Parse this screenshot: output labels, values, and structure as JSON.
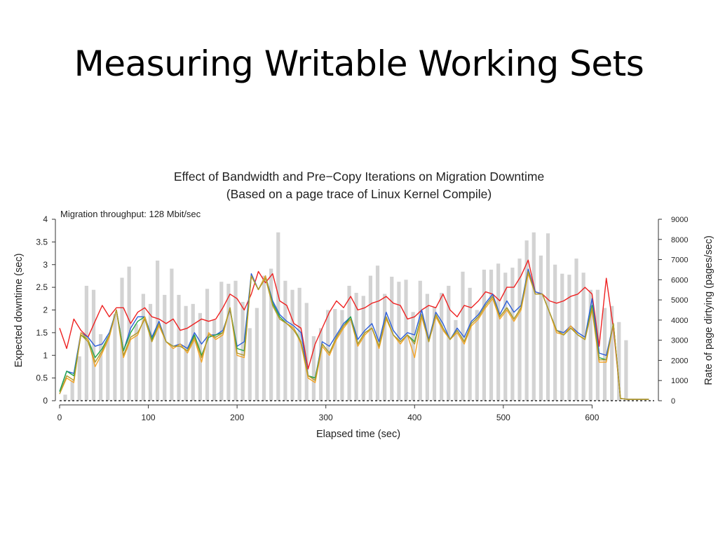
{
  "slide": {
    "title": "Measuring Writable Working Sets"
  },
  "chart_data": {
    "type": "line",
    "title": "Effect of Bandwidth and Pre−Copy Iterations on Migration Downtime",
    "subtitle": "(Based on a page trace of Linux Kernel Compile)",
    "annotation": "Migration throughput: 128 Mbit/sec",
    "xlabel": "Elapsed time (sec)",
    "ylabel": "Expected downtime (sec)",
    "y2label": "Rate of page dirtying (pages/sec)",
    "xlim": [
      0,
      670
    ],
    "ylim": [
      0,
      4
    ],
    "y2lim": [
      0,
      9000
    ],
    "x_ticks": [
      "0",
      "100",
      "200",
      "300",
      "400",
      "500",
      "600"
    ],
    "y_ticks": [
      "0",
      "0.5",
      "1",
      "1.5",
      "2",
      "2.5",
      "3",
      "3.5",
      "4"
    ],
    "y2_ticks": [
      "0",
      "1000",
      "2000",
      "3000",
      "4000",
      "5000",
      "6000",
      "7000",
      "8000",
      "9000"
    ],
    "grid": false,
    "colors": {
      "red": "#ee2222",
      "blue": "#2e5fd9",
      "green": "#22a64a",
      "orange": "#f4a428",
      "olive": "#b29a2c",
      "bars": "#d3d3d3"
    },
    "bars": {
      "x": [
        0,
        8,
        16,
        24,
        32,
        40,
        48,
        56,
        64,
        72,
        80,
        88,
        96,
        104,
        112,
        120,
        128,
        136,
        144,
        152,
        160,
        168,
        176,
        184,
        192,
        200,
        208,
        216,
        224,
        232,
        240,
        248,
        256,
        264,
        272,
        280,
        288,
        296,
        304,
        312,
        320,
        328,
        336,
        344,
        352,
        360,
        368,
        376,
        384,
        392,
        400,
        408,
        416,
        424,
        432,
        440,
        448,
        456,
        464,
        472,
        480,
        488,
        496,
        504,
        512,
        520,
        528,
        536,
        544,
        552,
        560,
        568,
        576,
        584,
        592,
        600,
        608,
        616,
        624,
        632,
        640,
        648,
        656,
        664
      ],
      "values": [
        300,
        1000,
        2200,
        5700,
        5500,
        3300,
        3200,
        4300,
        6100,
        6650,
        3800,
        5300,
        4800,
        6950,
        5250,
        6550,
        5250,
        4700,
        4800,
        4350,
        5550,
        4000,
        5900,
        5800,
        5950,
        4900,
        3600,
        4600,
        6200,
        6550,
        8350,
        5950,
        5500,
        5600,
        4850,
        3200,
        3600,
        4500,
        4550,
        4500,
        5700,
        5350,
        5200,
        6200,
        6700,
        5300,
        6150,
        5900,
        6000,
        4400,
        5950,
        5300,
        4650,
        5350,
        5700,
        4000,
        6400,
        5600,
        4500,
        6500,
        6500,
        6800,
        6350,
        6600,
        7050,
        7950,
        8350,
        7200,
        8300,
        6750,
        6300,
        6250,
        7050,
        6350,
        5500,
        5500,
        4600,
        4700,
        3900,
        3000,
        0,
        0,
        0,
        0
      ]
    },
    "x": [
      0,
      8,
      16,
      24,
      32,
      40,
      48,
      56,
      64,
      72,
      80,
      88,
      96,
      104,
      112,
      120,
      128,
      136,
      144,
      152,
      160,
      168,
      176,
      184,
      192,
      200,
      208,
      216,
      224,
      232,
      240,
      248,
      256,
      264,
      272,
      280,
      288,
      296,
      304,
      312,
      320,
      328,
      336,
      344,
      352,
      360,
      368,
      376,
      384,
      392,
      400,
      408,
      416,
      424,
      432,
      440,
      448,
      456,
      464,
      472,
      480,
      488,
      496,
      504,
      512,
      520,
      528,
      536,
      544,
      552,
      560,
      568,
      576,
      584,
      592,
      600,
      608,
      616,
      624,
      632,
      640,
      648,
      656,
      664
    ],
    "series": [
      {
        "color": "red",
        "values": [
          1.6,
          1.15,
          1.8,
          1.55,
          1.4,
          1.75,
          2.1,
          1.85,
          2.05,
          2.05,
          1.7,
          1.95,
          2.05,
          1.85,
          1.8,
          1.7,
          1.8,
          1.55,
          1.6,
          1.7,
          1.8,
          1.75,
          1.8,
          2.05,
          2.35,
          2.25,
          2.0,
          2.35,
          2.85,
          2.6,
          2.8,
          2.2,
          2.1,
          1.7,
          1.6,
          0.7,
          1.25,
          1.6,
          1.95,
          2.2,
          2.05,
          2.3,
          2.0,
          2.05,
          2.15,
          2.2,
          2.3,
          2.15,
          2.1,
          1.8,
          1.85,
          2.0,
          2.1,
          2.05,
          2.35,
          2.0,
          1.85,
          2.1,
          2.05,
          2.2,
          2.4,
          2.35,
          2.2,
          2.5,
          2.5,
          2.75,
          3.1,
          2.4,
          2.35,
          2.2,
          2.15,
          2.2,
          2.3,
          2.35,
          2.5,
          2.35,
          1.2,
          2.7,
          1.6,
          0.05,
          0.03,
          0.03,
          0.03,
          0.03
        ]
      },
      {
        "color": "blue",
        "values": [
          0.2,
          0.65,
          0.6,
          1.5,
          1.4,
          1.2,
          1.25,
          1.5,
          2.0,
          1.1,
          1.6,
          1.85,
          1.85,
          1.4,
          1.75,
          1.3,
          1.2,
          1.25,
          1.15,
          1.5,
          1.25,
          1.45,
          1.45,
          1.55,
          2.0,
          1.2,
          1.3,
          2.8,
          2.45,
          2.75,
          2.2,
          1.9,
          1.75,
          1.65,
          1.5,
          0.55,
          0.5,
          1.3,
          1.2,
          1.45,
          1.7,
          1.85,
          1.35,
          1.55,
          1.7,
          1.3,
          1.95,
          1.55,
          1.35,
          1.5,
          1.45,
          2.0,
          1.35,
          1.95,
          1.7,
          1.35,
          1.6,
          1.4,
          1.75,
          1.9,
          2.15,
          2.35,
          1.9,
          2.2,
          1.95,
          2.1,
          2.9,
          2.4,
          2.35,
          1.95,
          1.55,
          1.5,
          1.65,
          1.5,
          1.4,
          2.25,
          1.05,
          1.0,
          1.7,
          0.05,
          0.03,
          0.03,
          0.03,
          0.03
        ]
      },
      {
        "color": "green",
        "values": [
          0.2,
          0.65,
          0.55,
          1.45,
          1.35,
          0.95,
          1.15,
          1.45,
          2.0,
          1.1,
          1.5,
          1.75,
          1.85,
          1.35,
          1.7,
          1.3,
          1.2,
          1.2,
          1.1,
          1.45,
          1.0,
          1.4,
          1.45,
          1.5,
          2.05,
          1.15,
          1.1,
          2.75,
          2.45,
          2.75,
          2.15,
          1.85,
          1.7,
          1.6,
          1.3,
          0.55,
          0.5,
          1.25,
          1.05,
          1.4,
          1.65,
          1.85,
          1.25,
          1.5,
          1.6,
          1.2,
          1.85,
          1.45,
          1.3,
          1.45,
          1.3,
          1.9,
          1.3,
          1.9,
          1.6,
          1.35,
          1.55,
          1.3,
          1.7,
          1.85,
          2.1,
          2.3,
          1.85,
          2.05,
          1.8,
          2.05,
          2.85,
          2.35,
          2.35,
          1.95,
          1.55,
          1.45,
          1.6,
          1.45,
          1.35,
          2.1,
          0.95,
          0.9,
          1.7,
          0.05,
          0.03,
          0.03,
          0.03,
          0.03
        ]
      },
      {
        "color": "orange",
        "values": [
          0.15,
          0.5,
          0.4,
          1.5,
          1.35,
          0.75,
          1.05,
          1.4,
          2.0,
          0.95,
          1.35,
          1.45,
          1.85,
          1.3,
          1.65,
          1.3,
          1.15,
          1.25,
          1.05,
          1.35,
          0.85,
          1.5,
          1.35,
          1.45,
          2.05,
          1.0,
          0.95,
          2.75,
          2.45,
          2.75,
          2.1,
          1.8,
          1.7,
          1.6,
          1.25,
          0.5,
          0.4,
          1.2,
          1.0,
          1.35,
          1.6,
          1.8,
          1.2,
          1.45,
          1.6,
          1.15,
          1.8,
          1.45,
          1.25,
          1.45,
          0.95,
          1.85,
          1.3,
          1.85,
          1.55,
          1.35,
          1.5,
          1.25,
          1.65,
          1.8,
          2.05,
          2.25,
          1.8,
          2.0,
          1.75,
          2.0,
          2.8,
          2.35,
          2.35,
          1.95,
          1.5,
          1.45,
          1.65,
          1.45,
          1.35,
          2.0,
          0.85,
          0.85,
          1.7,
          0.05,
          0.03,
          0.03,
          0.03,
          0.03
        ]
      },
      {
        "color": "olive",
        "values": [
          0.15,
          0.55,
          0.45,
          1.45,
          1.3,
          0.85,
          1.1,
          1.45,
          2.0,
          1.0,
          1.4,
          1.5,
          1.8,
          1.3,
          1.7,
          1.3,
          1.2,
          1.2,
          1.1,
          1.4,
          0.95,
          1.45,
          1.4,
          1.5,
          2.05,
          1.05,
          1.0,
          2.75,
          2.45,
          2.7,
          2.1,
          1.8,
          1.7,
          1.55,
          1.3,
          0.55,
          0.45,
          1.25,
          1.05,
          1.4,
          1.65,
          1.8,
          1.25,
          1.5,
          1.6,
          1.2,
          1.85,
          1.45,
          1.3,
          1.45,
          1.25,
          1.9,
          1.3,
          1.9,
          1.6,
          1.35,
          1.55,
          1.3,
          1.7,
          1.85,
          2.1,
          2.3,
          1.85,
          2.05,
          1.8,
          2.05,
          2.85,
          2.35,
          2.35,
          1.95,
          1.55,
          1.45,
          1.6,
          1.45,
          1.35,
          2.05,
          0.9,
          0.9,
          1.7,
          0.05,
          0.03,
          0.03,
          0.03,
          0.03
        ]
      }
    ]
  }
}
